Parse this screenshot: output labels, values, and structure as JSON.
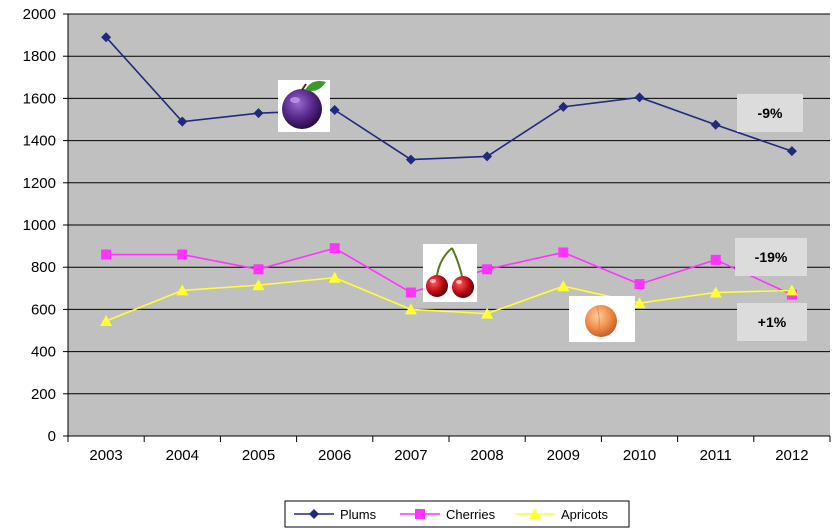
{
  "chart_data": {
    "type": "line",
    "x": [
      "2003",
      "2004",
      "2005",
      "2006",
      "2007",
      "2008",
      "2009",
      "2010",
      "2011",
      "2012"
    ],
    "ylim": [
      0,
      2000
    ],
    "yticks": [
      "0",
      "200",
      "400",
      "600",
      "800",
      "1000",
      "1200",
      "1400",
      "1600",
      "1800",
      "2000"
    ],
    "grid": true,
    "legend_position": "bottom",
    "series": [
      {
        "name": "Plums",
        "color": "#1F2A7C",
        "marker": "diamond",
        "values": [
          1890,
          1490,
          1530,
          1545,
          1310,
          1325,
          1560,
          1605,
          1475,
          1350
        ]
      },
      {
        "name": "Cherries",
        "color": "#FF33FF",
        "marker": "square",
        "values": [
          860,
          860,
          790,
          890,
          680,
          790,
          870,
          720,
          835,
          670
        ]
      },
      {
        "name": "Apricots",
        "color": "#FFFF33",
        "marker": "triangle",
        "values": [
          545,
          690,
          715,
          750,
          600,
          580,
          710,
          630,
          680,
          690
        ]
      }
    ],
    "annotations": [
      {
        "text": "-9%",
        "series": "Plums"
      },
      {
        "text": "-19%",
        "series": "Cherries"
      },
      {
        "text": "+1%",
        "series": "Apricots"
      }
    ],
    "fruit_pictures": [
      "plum-icon",
      "cherries-icon",
      "apricot-icon"
    ]
  }
}
